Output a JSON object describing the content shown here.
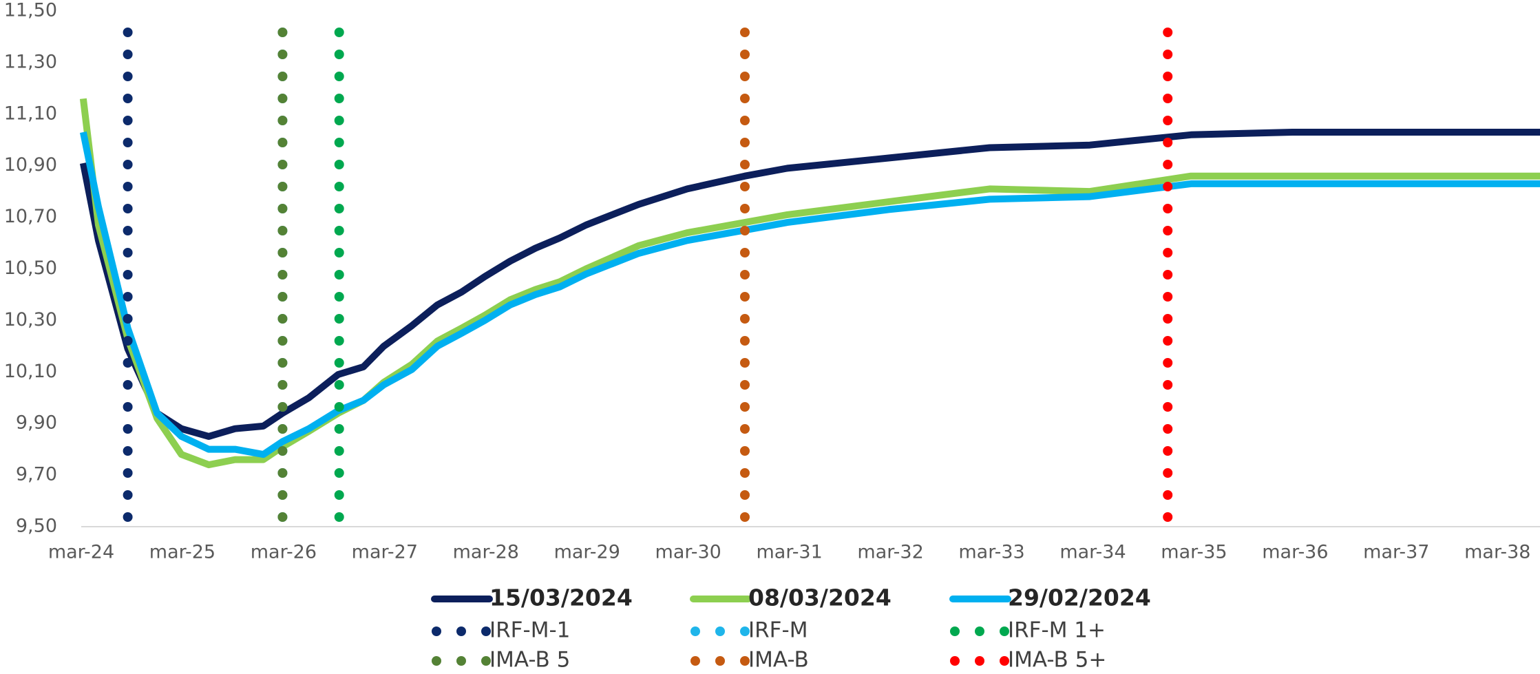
{
  "chart_data": {
    "type": "line",
    "x": [
      2024.19,
      2024.34,
      2024.63,
      2024.92,
      2025.16,
      2025.43,
      2025.69,
      2025.97,
      2026.16,
      2026.42,
      2026.71,
      2026.96,
      2027.16,
      2027.44,
      2027.69,
      2027.93,
      2028.16,
      2028.41,
      2028.66,
      2028.9,
      2029.16,
      2029.68,
      2030.16,
      2030.73,
      2031.15,
      2032.15,
      2033.15,
      2034.14,
      2035.14,
      2036.14,
      2037.13,
      2038.59
    ],
    "series": [
      {
        "name": "15/03/2024",
        "color": "#0c1f5b",
        "values": [
          10.91,
          10.61,
          10.19,
          9.94,
          9.88,
          9.85,
          9.88,
          9.89,
          9.94,
          10.0,
          10.09,
          10.12,
          10.2,
          10.28,
          10.36,
          10.41,
          10.47,
          10.53,
          10.58,
          10.62,
          10.67,
          10.75,
          10.81,
          10.86,
          10.89,
          10.93,
          10.97,
          10.98,
          11.02,
          11.03,
          11.03,
          11.03
        ]
      },
      {
        "name": "08/03/2024",
        "color": "#8dcf50",
        "values": [
          11.16,
          10.67,
          10.23,
          9.92,
          9.78,
          9.74,
          9.76,
          9.76,
          9.81,
          9.87,
          9.94,
          9.99,
          10.06,
          10.13,
          10.22,
          10.27,
          10.32,
          10.38,
          10.42,
          10.45,
          10.5,
          10.59,
          10.64,
          10.68,
          10.71,
          10.76,
          10.81,
          10.8,
          10.86,
          10.86,
          10.86,
          10.86
        ]
      },
      {
        "name": "29/02/2024",
        "color": "#00b0f0",
        "values": [
          11.03,
          10.74,
          10.27,
          9.94,
          9.85,
          9.8,
          9.8,
          9.78,
          9.83,
          9.88,
          9.95,
          9.99,
          10.05,
          10.11,
          10.2,
          10.25,
          10.3,
          10.36,
          10.4,
          10.43,
          10.48,
          10.56,
          10.61,
          10.65,
          10.68,
          10.73,
          10.77,
          10.78,
          10.83,
          10.83,
          10.83,
          10.83
        ]
      }
    ],
    "vlines": [
      {
        "name": "IRF-M-1",
        "color": "#0c2a6b",
        "x": 2024.63
      },
      {
        "name": "IRF-M",
        "color": "#1fb5ea",
        "x": 2026.16
      },
      {
        "name": "IRF-M 1+",
        "color": "#00a84f",
        "x": 2026.72
      },
      {
        "name": "IMA-B 5",
        "color": "#548235",
        "x": 2026.16
      },
      {
        "name": "IMA-B",
        "color": "#c55a11",
        "x": 2030.73
      },
      {
        "name": "IMA-B 5+",
        "color": "#ff0000",
        "x": 2034.91
      }
    ],
    "xlim": [
      2024.17,
      2038.59
    ],
    "xticks": [
      {
        "value": 2024.17,
        "label": "mar-24"
      },
      {
        "value": 2025.17,
        "label": "mar-25"
      },
      {
        "value": 2026.17,
        "label": "mar-26"
      },
      {
        "value": 2027.17,
        "label": "mar-27"
      },
      {
        "value": 2028.17,
        "label": "mar-28"
      },
      {
        "value": 2029.17,
        "label": "mar-29"
      },
      {
        "value": 2030.17,
        "label": "mar-30"
      },
      {
        "value": 2031.17,
        "label": "mar-31"
      },
      {
        "value": 2032.17,
        "label": "mar-32"
      },
      {
        "value": 2033.17,
        "label": "mar-33"
      },
      {
        "value": 2034.17,
        "label": "mar-34"
      },
      {
        "value": 2035.17,
        "label": "mar-35"
      },
      {
        "value": 2036.17,
        "label": "mar-36"
      },
      {
        "value": 2037.17,
        "label": "mar-37"
      },
      {
        "value": 2038.17,
        "label": "mar-38"
      }
    ],
    "ylim": [
      9.5,
      11.5
    ],
    "yticks": [
      {
        "value": 9.5,
        "label": "9,50"
      },
      {
        "value": 9.7,
        "label": "9,70"
      },
      {
        "value": 9.9,
        "label": "9,90"
      },
      {
        "value": 10.1,
        "label": "10,10"
      },
      {
        "value": 10.3,
        "label": "10,30"
      },
      {
        "value": 10.5,
        "label": "10,50"
      },
      {
        "value": 10.7,
        "label": "10,70"
      },
      {
        "value": 10.9,
        "label": "10,90"
      },
      {
        "value": 11.1,
        "label": "11,10"
      },
      {
        "value": 11.3,
        "label": "11,30"
      },
      {
        "value": 11.5,
        "label": "11,50"
      }
    ],
    "grid": false,
    "legend": "bottom"
  }
}
